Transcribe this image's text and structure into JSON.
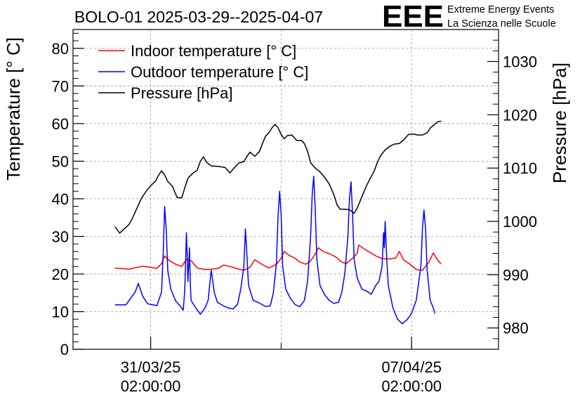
{
  "logo": {
    "letters": "EEE",
    "line1": "Extreme Energy Events",
    "line2": "La Scienza nelle Scuole",
    "color": "#0000ff"
  },
  "chart_data": {
    "type": "line",
    "title": "BOLO-01 2025-03-29--2025-04-07",
    "ylabel": "Temperature [° C]",
    "y2label": "Pressure [hPa]",
    "xlabel": "",
    "ylim": [
      0,
      85
    ],
    "y2lim": [
      976,
      1036
    ],
    "y_ticks": [
      0,
      10,
      20,
      30,
      40,
      50,
      60,
      70,
      80
    ],
    "y2_ticks": [
      980,
      990,
      1000,
      1010,
      1020,
      1030
    ],
    "xlim": [
      "2025-03-29 00:00",
      "2025-04-09 10:00"
    ],
    "x_tick_labels": [
      {
        "x": "2025-03-31 02:00",
        "date": "31/03/25",
        "time": "02:00:00"
      },
      {
        "x": "2025-04-07 02:00",
        "date": "07/04/25",
        "time": "02:00:00"
      }
    ],
    "grid": true,
    "legend_position": "top-left",
    "series": [
      {
        "name": "Indoor temperature [° C]",
        "axis": "left",
        "color": "#ff0000",
        "points": [
          [
            "2025-03-30 03:00",
            21.6
          ],
          [
            "2025-03-30 12:00",
            21.3
          ],
          [
            "2025-03-30 21:00",
            22.1
          ],
          [
            "2025-03-31 06:00",
            21.5
          ],
          [
            "2025-03-31 09:00",
            22.8
          ],
          [
            "2025-03-31 11:00",
            24.8
          ],
          [
            "2025-03-31 14:00",
            23.6
          ],
          [
            "2025-03-31 18:00",
            22.6
          ],
          [
            "2025-03-31 22:00",
            22.0
          ],
          [
            "2025-04-01 01:00",
            23.9
          ],
          [
            "2025-04-01 04:00",
            23.6
          ],
          [
            "2025-04-01 08:00",
            21.6
          ],
          [
            "2025-04-01 13:00",
            21.2
          ],
          [
            "2025-04-01 18:00",
            21.3
          ],
          [
            "2025-04-01 22:00",
            21.6
          ],
          [
            "2025-04-02 01:00",
            22.4
          ],
          [
            "2025-04-02 05:00",
            22.0
          ],
          [
            "2025-04-02 10:00",
            21.4
          ],
          [
            "2025-04-02 14:00",
            21.0
          ],
          [
            "2025-04-02 18:00",
            21.8
          ],
          [
            "2025-04-02 21:00",
            23.8
          ],
          [
            "2025-04-03 02:00",
            22.5
          ],
          [
            "2025-04-03 06:00",
            21.6
          ],
          [
            "2025-04-03 11:00",
            22.6
          ],
          [
            "2025-04-03 14:00",
            24.2
          ],
          [
            "2025-04-03 16:00",
            26.0
          ],
          [
            "2025-04-03 19:00",
            25.0
          ],
          [
            "2025-04-03 23:00",
            24.2
          ],
          [
            "2025-04-04 02:00",
            23.2
          ],
          [
            "2025-04-04 06:00",
            22.6
          ],
          [
            "2025-04-04 09:00",
            23.5
          ],
          [
            "2025-04-04 12:00",
            25.3
          ],
          [
            "2025-04-04 14:00",
            27.0
          ],
          [
            "2025-04-04 17:00",
            26.0
          ],
          [
            "2025-04-04 21:00",
            25.4
          ],
          [
            "2025-04-05 01:00",
            24.6
          ],
          [
            "2025-04-05 05:00",
            23.2
          ],
          [
            "2025-04-05 08:00",
            22.8
          ],
          [
            "2025-04-05 11:00",
            23.8
          ],
          [
            "2025-04-05 15:00",
            25.5
          ],
          [
            "2025-04-05 16:00",
            27.7
          ],
          [
            "2025-04-05 19:00",
            26.8
          ],
          [
            "2025-04-05 23:00",
            25.8
          ],
          [
            "2025-04-06 03:00",
            24.8
          ],
          [
            "2025-04-06 07:00",
            24.1
          ],
          [
            "2025-04-06 12:00",
            24.0
          ],
          [
            "2025-04-06 16:00",
            24.3
          ],
          [
            "2025-04-06 18:00",
            26.0
          ],
          [
            "2025-04-06 21:00",
            23.7
          ],
          [
            "2025-04-07 01:00",
            22.6
          ],
          [
            "2025-04-07 05:00",
            21.2
          ],
          [
            "2025-04-07 09:00",
            21.0
          ],
          [
            "2025-04-07 13:00",
            23.1
          ],
          [
            "2025-04-07 16:00",
            25.6
          ],
          [
            "2025-04-07 19:00",
            23.6
          ],
          [
            "2025-04-07 21:00",
            22.7
          ]
        ]
      },
      {
        "name": "Outdoor temperature [° C]",
        "axis": "left",
        "color": "#0000ff",
        "points": [
          [
            "2025-03-30 03:00",
            11.8
          ],
          [
            "2025-03-30 10:00",
            11.8
          ],
          [
            "2025-03-30 13:00",
            13.5
          ],
          [
            "2025-03-30 16:00",
            15.2
          ],
          [
            "2025-03-30 18:00",
            17.5
          ],
          [
            "2025-03-30 21:00",
            14.0
          ],
          [
            "2025-03-31 00:00",
            12.1
          ],
          [
            "2025-03-31 06:00",
            11.6
          ],
          [
            "2025-03-31 09:00",
            15.2
          ],
          [
            "2025-03-31 10:00",
            25.0
          ],
          [
            "2025-03-31 11:00",
            38.0
          ],
          [
            "2025-03-31 12:00",
            32.0
          ],
          [
            "2025-03-31 13:00",
            21.0
          ],
          [
            "2025-03-31 15:00",
            16.0
          ],
          [
            "2025-03-31 18:00",
            12.9
          ],
          [
            "2025-03-31 21:00",
            11.5
          ],
          [
            "2025-03-31 23:00",
            10.4
          ],
          [
            "2025-04-01 00:00",
            16.0
          ],
          [
            "2025-04-01 01:00",
            31.0
          ],
          [
            "2025-04-01 01:30",
            25.0
          ],
          [
            "2025-04-01 02:00",
            18.0
          ],
          [
            "2025-04-01 03:00",
            27.0
          ],
          [
            "2025-04-01 03:30",
            18.0
          ],
          [
            "2025-04-01 04:00",
            13.0
          ],
          [
            "2025-04-01 07:00",
            11.0
          ],
          [
            "2025-04-01 10:00",
            9.3
          ],
          [
            "2025-04-01 13:00",
            11.0
          ],
          [
            "2025-04-01 15:00",
            13.0
          ],
          [
            "2025-04-01 17:00",
            21.0
          ],
          [
            "2025-04-01 19:00",
            15.0
          ],
          [
            "2025-04-01 21:00",
            12.5
          ],
          [
            "2025-04-02 01:00",
            11.5
          ],
          [
            "2025-04-02 04:00",
            11.0
          ],
          [
            "2025-04-02 07:00",
            10.7
          ],
          [
            "2025-04-02 10:00",
            12.0
          ],
          [
            "2025-04-02 12:00",
            16.0
          ],
          [
            "2025-04-02 14:00",
            22.0
          ],
          [
            "2025-04-02 15:00",
            32.0
          ],
          [
            "2025-04-02 16:00",
            25.0
          ],
          [
            "2025-04-02 17:00",
            17.0
          ],
          [
            "2025-04-02 20:00",
            13.0
          ],
          [
            "2025-04-02 23:00",
            12.5
          ],
          [
            "2025-04-03 04:00",
            11.4
          ],
          [
            "2025-04-03 07:00",
            11.5
          ],
          [
            "2025-04-03 09:00",
            15.0
          ],
          [
            "2025-04-03 11:00",
            23.0
          ],
          [
            "2025-04-03 12:00",
            35.0
          ],
          [
            "2025-04-03 13:00",
            42.0
          ],
          [
            "2025-04-03 14:00",
            36.0
          ],
          [
            "2025-04-03 15:00",
            22.0
          ],
          [
            "2025-04-03 17:00",
            16.0
          ],
          [
            "2025-04-03 20:00",
            13.5
          ],
          [
            "2025-04-03 23:00",
            11.9
          ],
          [
            "2025-04-04 02:00",
            11.3
          ],
          [
            "2025-04-04 05:00",
            13.0
          ],
          [
            "2025-04-04 07:00",
            18.0
          ],
          [
            "2025-04-04 09:00",
            30.0
          ],
          [
            "2025-04-04 10:00",
            41.0
          ],
          [
            "2025-04-04 11:00",
            46.0
          ],
          [
            "2025-04-04 12:00",
            37.0
          ],
          [
            "2025-04-04 13:00",
            24.0
          ],
          [
            "2025-04-04 15:00",
            17.0
          ],
          [
            "2025-04-04 18:00",
            14.5
          ],
          [
            "2025-04-04 21:00",
            13.0
          ],
          [
            "2025-04-05 00:00",
            12.2
          ],
          [
            "2025-04-05 03:00",
            12.5
          ],
          [
            "2025-04-05 05:00",
            15.0
          ],
          [
            "2025-04-05 07:00",
            20.0
          ],
          [
            "2025-04-05 09:00",
            30.0
          ],
          [
            "2025-04-05 10:00",
            40.0
          ],
          [
            "2025-04-05 11:00",
            44.5
          ],
          [
            "2025-04-05 12:00",
            36.0
          ],
          [
            "2025-04-05 13:00",
            24.0
          ],
          [
            "2025-04-05 15:00",
            19.0
          ],
          [
            "2025-04-05 18:00",
            16.0
          ],
          [
            "2025-04-05 21:00",
            15.5
          ],
          [
            "2025-04-06 00:00",
            14.6
          ],
          [
            "2025-04-06 03:00",
            17.0
          ],
          [
            "2025-04-06 05:00",
            18.0
          ],
          [
            "2025-04-06 07:00",
            22.0
          ],
          [
            "2025-04-06 08:00",
            31.0
          ],
          [
            "2025-04-06 08:30",
            27.0
          ],
          [
            "2025-04-06 09:00",
            34.0
          ],
          [
            "2025-04-06 10:00",
            24.0
          ],
          [
            "2025-04-06 11:00",
            17.0
          ],
          [
            "2025-04-06 14:00",
            11.0
          ],
          [
            "2025-04-06 17:00",
            8.0
          ],
          [
            "2025-04-06 20:00",
            6.8
          ],
          [
            "2025-04-06 23:00",
            7.8
          ],
          [
            "2025-04-07 02:00",
            9.5
          ],
          [
            "2025-04-07 05:00",
            13.0
          ],
          [
            "2025-04-07 08:00",
            22.0
          ],
          [
            "2025-04-07 09:00",
            32.0
          ],
          [
            "2025-04-07 10:00",
            37.0
          ],
          [
            "2025-04-07 11:00",
            32.0
          ],
          [
            "2025-04-07 12:00",
            21.0
          ],
          [
            "2025-04-07 14:00",
            13.0
          ],
          [
            "2025-04-07 16:00",
            11.0
          ],
          [
            "2025-04-07 17:00",
            9.5
          ]
        ]
      },
      {
        "name": "Pressure [hPa]",
        "axis": "right",
        "color": "#000000",
        "points": [
          [
            "2025-03-30 03:00",
            999.0
          ],
          [
            "2025-03-30 06:00",
            997.8
          ],
          [
            "2025-03-30 09:00",
            998.6
          ],
          [
            "2025-03-30 12:00",
            999.4
          ],
          [
            "2025-03-30 14:00",
            1000.4
          ],
          [
            "2025-03-30 17:00",
            1002.4
          ],
          [
            "2025-03-30 20:00",
            1004.3
          ],
          [
            "2025-03-30 23:00",
            1005.6
          ],
          [
            "2025-03-31 02:00",
            1006.7
          ],
          [
            "2025-03-31 05:00",
            1007.5
          ],
          [
            "2025-03-31 07:00",
            1008.6
          ],
          [
            "2025-03-31 09:00",
            1009.5
          ],
          [
            "2025-03-31 11:00",
            1008.7
          ],
          [
            "2025-03-31 13:00",
            1007.5
          ],
          [
            "2025-03-31 16:00",
            1006.6
          ],
          [
            "2025-03-31 19:00",
            1004.5
          ],
          [
            "2025-03-31 22:00",
            1004.4
          ],
          [
            "2025-04-01 00:00",
            1006.3
          ],
          [
            "2025-04-01 02:00",
            1008.1
          ],
          [
            "2025-04-01 05:00",
            1009.0
          ],
          [
            "2025-04-01 08:00",
            1009.6
          ],
          [
            "2025-04-01 10:00",
            1011.3
          ],
          [
            "2025-04-01 12:00",
            1012.1
          ],
          [
            "2025-04-01 14:00",
            1011.1
          ],
          [
            "2025-04-01 17:00",
            1010.4
          ],
          [
            "2025-04-01 22:00",
            1010.3
          ],
          [
            "2025-04-02 02:00",
            1010.1
          ],
          [
            "2025-04-02 05:00",
            1009.1
          ],
          [
            "2025-04-02 08:00",
            1010.1
          ],
          [
            "2025-04-02 11:00",
            1011.0
          ],
          [
            "2025-04-02 14:00",
            1011.2
          ],
          [
            "2025-04-02 16:00",
            1012.2
          ],
          [
            "2025-04-02 18:00",
            1013.0
          ],
          [
            "2025-04-02 21:00",
            1012.2
          ],
          [
            "2025-04-03 00:00",
            1013.1
          ],
          [
            "2025-04-03 02:00",
            1014.6
          ],
          [
            "2025-04-03 04:00",
            1016.0
          ],
          [
            "2025-04-03 06:00",
            1016.6
          ],
          [
            "2025-04-03 08:00",
            1017.5
          ],
          [
            "2025-04-03 10:00",
            1018.2
          ],
          [
            "2025-04-03 12:00",
            1017.6
          ],
          [
            "2025-04-03 14:00",
            1016.3
          ],
          [
            "2025-04-03 16:00",
            1015.5
          ],
          [
            "2025-04-03 18:00",
            1016.1
          ],
          [
            "2025-04-03 21:00",
            1016.2
          ],
          [
            "2025-04-04 00:00",
            1015.2
          ],
          [
            "2025-04-04 03:00",
            1015.2
          ],
          [
            "2025-04-04 05:00",
            1014.6
          ],
          [
            "2025-04-04 07:00",
            1013.2
          ],
          [
            "2025-04-04 09:00",
            1011.0
          ],
          [
            "2025-04-04 12:00",
            1010.0
          ],
          [
            "2025-04-04 15:00",
            1009.3
          ],
          [
            "2025-04-04 18:00",
            1008.3
          ],
          [
            "2025-04-04 21:00",
            1007.0
          ],
          [
            "2025-04-05 00:00",
            1005.0
          ],
          [
            "2025-04-05 02:00",
            1003.1
          ],
          [
            "2025-04-05 04:00",
            1002.3
          ],
          [
            "2025-04-05 07:00",
            1002.3
          ],
          [
            "2025-04-05 10:00",
            1002.2
          ],
          [
            "2025-04-05 13:00",
            1001.5
          ],
          [
            "2025-04-05 15:00",
            1002.5
          ],
          [
            "2025-04-05 18:00",
            1004.6
          ],
          [
            "2025-04-05 21:00",
            1006.7
          ],
          [
            "2025-04-06 00:00",
            1008.4
          ],
          [
            "2025-04-06 02:00",
            1009.5
          ],
          [
            "2025-04-06 04:00",
            1011.1
          ],
          [
            "2025-04-06 06:00",
            1012.3
          ],
          [
            "2025-04-06 09:00",
            1013.4
          ],
          [
            "2025-04-06 12:00",
            1014.1
          ],
          [
            "2025-04-06 15:00",
            1014.5
          ],
          [
            "2025-04-06 18:00",
            1014.6
          ],
          [
            "2025-04-06 21:00",
            1015.3
          ],
          [
            "2025-04-07 00:00",
            1016.3
          ],
          [
            "2025-04-07 03:00",
            1016.4
          ],
          [
            "2025-04-07 06:00",
            1016.2
          ],
          [
            "2025-04-07 09:00",
            1016.2
          ],
          [
            "2025-04-07 12:00",
            1016.6
          ],
          [
            "2025-04-07 14:00",
            1017.5
          ],
          [
            "2025-04-07 16:00",
            1018.0
          ],
          [
            "2025-04-07 19:00",
            1018.7
          ],
          [
            "2025-04-07 21:00",
            1018.8
          ]
        ]
      }
    ]
  }
}
